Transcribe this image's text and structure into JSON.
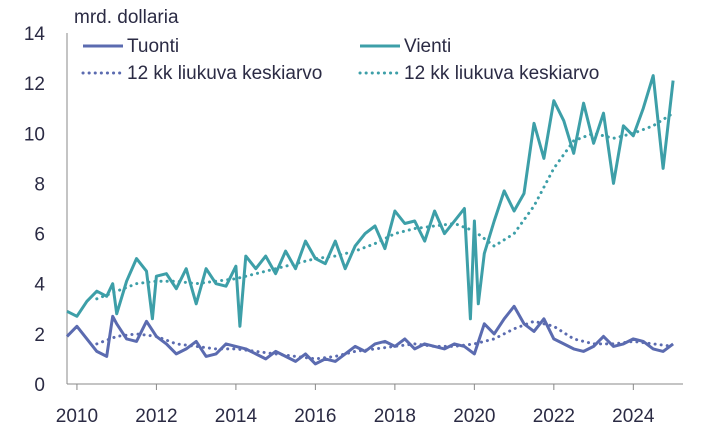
{
  "chart_data": {
    "type": "line",
    "title": "",
    "ylabel": "mrd. dollaria",
    "xlabel": "",
    "ylim": [
      0,
      14
    ],
    "y_ticks": [
      "0",
      "2",
      "4",
      "6",
      "8",
      "10",
      "12",
      "14"
    ],
    "x_ticks": [
      "2010",
      "2012",
      "2014",
      "2016",
      "2018",
      "2020",
      "2022",
      "2024"
    ],
    "grid": false,
    "legend_position": "top",
    "colors": {
      "tuonti": "#5b6bb0",
      "vienti": "#3d9fa8",
      "axis": "#888888",
      "text": "#2b2b44"
    },
    "series": [
      {
        "name": "Tuonti",
        "style": "solid",
        "x": [
          2009.75,
          2010.0,
          2010.25,
          2010.5,
          2010.75,
          2010.9,
          2011.0,
          2011.25,
          2011.5,
          2011.75,
          2012.0,
          2012.25,
          2012.5,
          2012.75,
          2013.0,
          2013.25,
          2013.5,
          2013.75,
          2014.0,
          2014.25,
          2014.5,
          2014.75,
          2015.0,
          2015.25,
          2015.5,
          2015.75,
          2016.0,
          2016.25,
          2016.5,
          2016.75,
          2017.0,
          2017.25,
          2017.5,
          2017.75,
          2018.0,
          2018.25,
          2018.5,
          2018.75,
          2019.0,
          2019.25,
          2019.5,
          2019.75,
          2020.0,
          2020.25,
          2020.5,
          2020.75,
          2021.0,
          2021.25,
          2021.5,
          2021.75,
          2022.0,
          2022.25,
          2022.5,
          2022.75,
          2023.0,
          2023.25,
          2023.5,
          2023.75,
          2024.0,
          2024.25,
          2024.5,
          2024.75,
          2025.0
        ],
        "values": [
          1.9,
          2.3,
          1.8,
          1.3,
          1.1,
          2.7,
          2.4,
          1.8,
          1.7,
          2.5,
          1.9,
          1.6,
          1.2,
          1.4,
          1.7,
          1.1,
          1.2,
          1.6,
          1.5,
          1.4,
          1.2,
          1.0,
          1.3,
          1.1,
          0.9,
          1.2,
          0.8,
          1.0,
          0.9,
          1.2,
          1.5,
          1.3,
          1.6,
          1.7,
          1.5,
          1.8,
          1.4,
          1.6,
          1.5,
          1.4,
          1.6,
          1.5,
          1.2,
          2.4,
          2.0,
          2.6,
          3.1,
          2.4,
          2.1,
          2.6,
          1.8,
          1.6,
          1.4,
          1.3,
          1.5,
          1.9,
          1.5,
          1.6,
          1.8,
          1.7,
          1.4,
          1.3,
          1.6
        ]
      },
      {
        "name": "Vienti",
        "style": "solid",
        "x": [
          2009.75,
          2010.0,
          2010.25,
          2010.5,
          2010.75,
          2010.9,
          2011.0,
          2011.25,
          2011.5,
          2011.75,
          2011.9,
          2012.0,
          2012.25,
          2012.5,
          2012.75,
          2013.0,
          2013.25,
          2013.5,
          2013.75,
          2014.0,
          2014.1,
          2014.25,
          2014.5,
          2014.75,
          2015.0,
          2015.25,
          2015.5,
          2015.75,
          2016.0,
          2016.25,
          2016.5,
          2016.75,
          2017.0,
          2017.25,
          2017.5,
          2017.75,
          2018.0,
          2018.25,
          2018.5,
          2018.75,
          2019.0,
          2019.25,
          2019.5,
          2019.75,
          2019.9,
          2020.0,
          2020.1,
          2020.25,
          2020.5,
          2020.75,
          2021.0,
          2021.25,
          2021.5,
          2021.75,
          2022.0,
          2022.25,
          2022.5,
          2022.75,
          2023.0,
          2023.25,
          2023.5,
          2023.75,
          2024.0,
          2024.25,
          2024.5,
          2024.75,
          2025.0
        ],
        "values": [
          2.9,
          2.7,
          3.3,
          3.7,
          3.5,
          4.0,
          2.8,
          4.1,
          5.0,
          4.5,
          2.6,
          4.3,
          4.4,
          3.8,
          4.6,
          3.2,
          4.6,
          4.0,
          3.9,
          4.7,
          2.3,
          5.1,
          4.6,
          5.1,
          4.4,
          5.3,
          4.6,
          5.7,
          5.0,
          4.8,
          5.7,
          4.6,
          5.5,
          6.0,
          6.3,
          5.4,
          6.9,
          6.4,
          6.5,
          5.7,
          6.9,
          6.0,
          6.5,
          7.0,
          2.6,
          6.5,
          3.2,
          5.2,
          6.5,
          7.7,
          6.9,
          7.6,
          10.4,
          9.0,
          11.3,
          10.5,
          9.2,
          11.2,
          9.6,
          10.8,
          8.0,
          10.3,
          9.9,
          11.0,
          12.3,
          8.6,
          12.1
        ]
      },
      {
        "name": "12 kk liukuva keskiarvo",
        "style": "dotted",
        "x": [
          2010.5,
          2011.0,
          2011.5,
          2012.0,
          2012.5,
          2013.0,
          2013.5,
          2014.0,
          2014.5,
          2015.0,
          2015.5,
          2016.0,
          2016.5,
          2017.0,
          2017.5,
          2018.0,
          2018.5,
          2019.0,
          2019.5,
          2020.0,
          2020.5,
          2021.0,
          2021.5,
          2022.0,
          2022.5,
          2023.0,
          2023.5,
          2024.0,
          2024.5,
          2025.0
        ],
        "values": [
          1.6,
          1.9,
          2.0,
          1.9,
          1.6,
          1.5,
          1.4,
          1.4,
          1.3,
          1.2,
          1.1,
          1.0,
          1.1,
          1.3,
          1.4,
          1.5,
          1.6,
          1.5,
          1.5,
          1.6,
          1.8,
          2.2,
          2.5,
          2.3,
          1.8,
          1.6,
          1.6,
          1.7,
          1.6,
          1.5
        ]
      },
      {
        "name": "12 kk liukuva keskiarvo",
        "style": "dotted",
        "x": [
          2010.5,
          2011.0,
          2011.5,
          2012.0,
          2012.5,
          2013.0,
          2013.5,
          2014.0,
          2014.5,
          2015.0,
          2015.5,
          2016.0,
          2016.5,
          2017.0,
          2017.5,
          2018.0,
          2018.5,
          2019.0,
          2019.5,
          2020.0,
          2020.5,
          2021.0,
          2021.5,
          2022.0,
          2022.5,
          2023.0,
          2023.5,
          2024.0,
          2024.5,
          2025.0
        ],
        "values": [
          3.4,
          3.7,
          4.0,
          4.1,
          4.1,
          4.0,
          4.1,
          4.2,
          4.4,
          4.6,
          4.8,
          5.0,
          5.1,
          5.3,
          5.6,
          6.0,
          6.2,
          6.3,
          6.4,
          6.1,
          5.5,
          6.0,
          7.1,
          8.6,
          9.7,
          10.0,
          9.8,
          10.0,
          10.3,
          10.8
        ]
      }
    ]
  }
}
